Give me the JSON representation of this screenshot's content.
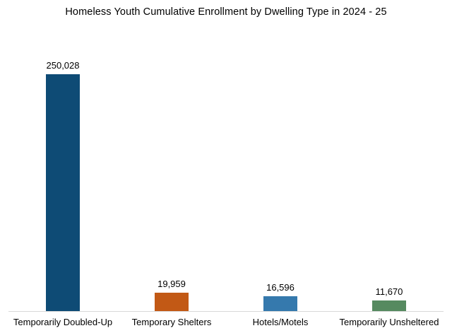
{
  "chart_data": {
    "type": "bar",
    "title": "Homeless Youth Cumulative Enrollment by Dwelling Type in 2024 - 25",
    "categories": [
      "Temporarily Doubled-Up",
      "Temporary Shelters",
      "Hotels/Motels",
      "Temporarily Unsheltered"
    ],
    "values": [
      250028,
      19959,
      16596,
      11670
    ],
    "value_labels": [
      "250,028",
      "19,959",
      "16,596",
      "11,670"
    ],
    "bar_colors": [
      "#0E4B75",
      "#C25915",
      "#3579AD",
      "#568A60"
    ],
    "axis_line_color": "#D9D9D9",
    "background_color": "#FFFFFF",
    "xlabel": "",
    "ylabel": "",
    "ylim": [
      0,
      250028
    ],
    "grid": false,
    "legend": false,
    "value_labels_position": "above-bar"
  }
}
